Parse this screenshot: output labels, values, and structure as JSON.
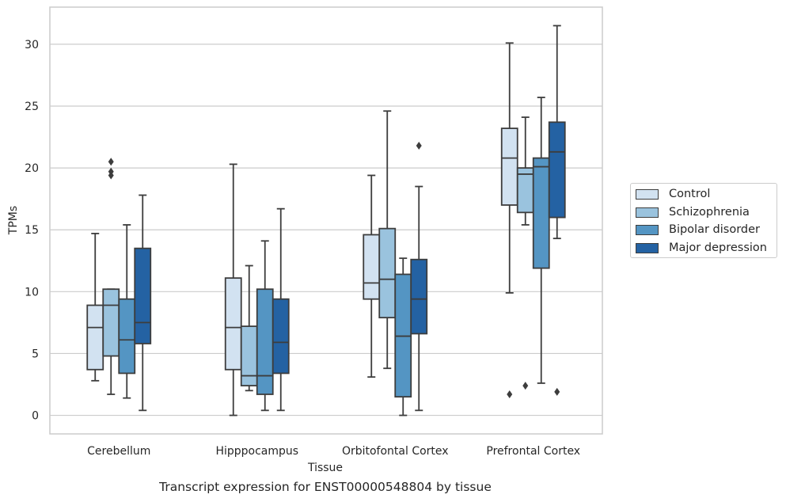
{
  "chart_data": {
    "type": "box",
    "xlabel": "Tissue",
    "ylabel": "TPMs",
    "caption": "Transcript expression for ENST00000548804 by tissue",
    "ylim": [
      -1.5,
      33
    ],
    "yticks": [
      0,
      5,
      10,
      15,
      20,
      25,
      30
    ],
    "grid": "horizontal",
    "legend_position": "right",
    "categories": [
      "Cerebellum",
      "Hipppocampus",
      "Orbitofontal Cortex",
      "Prefrontal Cortex"
    ],
    "series": [
      {
        "name": "Control",
        "color": "#d2e2f1",
        "boxes": [
          {
            "whisker_low": 2.8,
            "q1": 3.7,
            "median": 7.1,
            "q3": 8.9,
            "whisker_high": 14.7,
            "outliers": []
          },
          {
            "whisker_low": 0.0,
            "q1": 3.7,
            "median": 7.1,
            "q3": 11.1,
            "whisker_high": 20.3,
            "outliers": []
          },
          {
            "whisker_low": 3.1,
            "q1": 9.4,
            "median": 10.7,
            "q3": 14.6,
            "whisker_high": 19.4,
            "outliers": []
          },
          {
            "whisker_low": 9.9,
            "q1": 17.0,
            "median": 20.8,
            "q3": 23.2,
            "whisker_high": 30.1,
            "outliers": [
              1.7
            ]
          }
        ]
      },
      {
        "name": "Schizophrenia",
        "color": "#9ac3de",
        "boxes": [
          {
            "whisker_low": 1.7,
            "q1": 4.8,
            "median": 8.9,
            "q3": 10.2,
            "whisker_high": 10.2,
            "outliers": [
              19.4,
              19.7,
              20.5
            ]
          },
          {
            "whisker_low": 2.0,
            "q1": 2.4,
            "median": 3.2,
            "q3": 7.2,
            "whisker_high": 12.1,
            "outliers": []
          },
          {
            "whisker_low": 3.8,
            "q1": 7.9,
            "median": 11.0,
            "q3": 15.1,
            "whisker_high": 24.6,
            "outliers": []
          },
          {
            "whisker_low": 15.4,
            "q1": 16.4,
            "median": 19.5,
            "q3": 20.0,
            "whisker_high": 24.1,
            "outliers": [
              2.4
            ]
          }
        ]
      },
      {
        "name": "Bipolar disorder",
        "color": "#5495c3",
        "boxes": [
          {
            "whisker_low": 1.4,
            "q1": 3.4,
            "median": 6.1,
            "q3": 9.4,
            "whisker_high": 15.4,
            "outliers": []
          },
          {
            "whisker_low": 0.4,
            "q1": 1.7,
            "median": 3.2,
            "q3": 10.2,
            "whisker_high": 14.1,
            "outliers": []
          },
          {
            "whisker_low": 0.0,
            "q1": 1.5,
            "median": 6.4,
            "q3": 11.4,
            "whisker_high": 12.7,
            "outliers": []
          },
          {
            "whisker_low": 2.6,
            "q1": 11.9,
            "median": 20.1,
            "q3": 20.8,
            "whisker_high": 25.7,
            "outliers": []
          }
        ]
      },
      {
        "name": "Major depression",
        "color": "#2462a3",
        "boxes": [
          {
            "whisker_low": 0.4,
            "q1": 5.8,
            "median": 7.5,
            "q3": 13.5,
            "whisker_high": 17.8,
            "outliers": []
          },
          {
            "whisker_low": 0.4,
            "q1": 3.4,
            "median": 5.9,
            "q3": 9.4,
            "whisker_high": 16.7,
            "outliers": []
          },
          {
            "whisker_low": 0.4,
            "q1": 6.6,
            "median": 9.4,
            "q3": 12.6,
            "whisker_high": 18.5,
            "outliers": [
              21.8
            ]
          },
          {
            "whisker_low": 14.3,
            "q1": 16.0,
            "median": 21.3,
            "q3": 23.7,
            "whisker_high": 31.5,
            "outliers": [
              1.9
            ]
          }
        ]
      }
    ]
  }
}
